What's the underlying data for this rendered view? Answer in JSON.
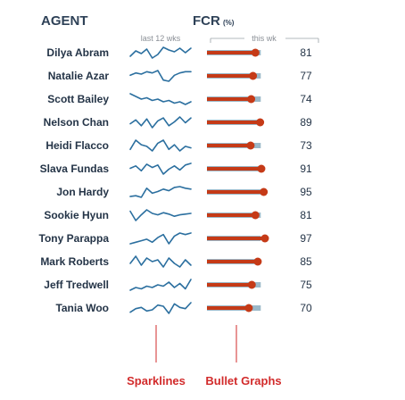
{
  "header": {
    "agent_label": "AGENT",
    "fcr_label": "FCR",
    "fcr_unit": "(%)",
    "sparkline_caption": "last 12 wks",
    "bullet_caption": "this wk"
  },
  "annotations": {
    "sparklines": "Sparklines",
    "bullets": "Bullet Graphs"
  },
  "colors": {
    "header_text": "#2e4157",
    "agent_text": "#243447",
    "sparkline": "#2b6f9f",
    "bullet_bar": "#c53a17",
    "bullet_target": "#9bb8c8",
    "annotation": "#d22b2b"
  },
  "chart_data": {
    "type": "table",
    "columns": [
      "AGENT",
      "last 12 wks",
      "this wk",
      "FCR (%)"
    ],
    "bullet_scale": [
      0,
      100
    ],
    "rows": [
      {
        "agent": "Dilya Abram",
        "fcr": 81,
        "target": 90,
        "trend": [
          72,
          78,
          75,
          80,
          70,
          74,
          82,
          79,
          77,
          81,
          76,
          81
        ]
      },
      {
        "agent": "Natalie Azar",
        "fcr": 77,
        "target": 90,
        "trend": [
          74,
          76,
          75,
          77,
          76,
          78,
          70,
          69,
          74,
          76,
          77,
          77
        ]
      },
      {
        "agent": "Scott Bailey",
        "fcr": 74,
        "target": 90,
        "trend": [
          80,
          78,
          76,
          77,
          75,
          76,
          74,
          75,
          73,
          74,
          72,
          74
        ]
      },
      {
        "agent": "Nelson Chan",
        "fcr": 89,
        "target": 90,
        "trend": [
          82,
          86,
          80,
          87,
          78,
          85,
          88,
          80,
          84,
          89,
          83,
          88
        ]
      },
      {
        "agent": "Heidi Flacco",
        "fcr": 73,
        "target": 90,
        "trend": [
          72,
          78,
          75,
          74,
          71,
          76,
          78,
          72,
          75,
          71,
          74,
          73
        ]
      },
      {
        "agent": "Slava Fundas",
        "fcr": 91,
        "target": 90,
        "trend": [
          85,
          88,
          82,
          90,
          86,
          89,
          78,
          84,
          88,
          83,
          89,
          91
        ]
      },
      {
        "agent": "Jon Hardy",
        "fcr": 95,
        "target": 90,
        "trend": [
          80,
          81,
          79,
          90,
          84,
          86,
          89,
          87,
          91,
          92,
          90,
          89
        ]
      },
      {
        "agent": "Sookie Hyun",
        "fcr": 81,
        "target": 90,
        "trend": [
          83,
          70,
          78,
          85,
          80,
          78,
          81,
          79,
          76,
          78,
          79,
          80
        ]
      },
      {
        "agent": "Tony Parappa",
        "fcr": 97,
        "target": 90,
        "trend": [
          90,
          91,
          92,
          93,
          91,
          94,
          96,
          90,
          95,
          97,
          96,
          97
        ]
      },
      {
        "agent": "Mark Roberts",
        "fcr": 85,
        "target": 90,
        "trend": [
          84,
          88,
          83,
          87,
          85,
          86,
          82,
          87,
          84,
          82,
          86,
          83
        ]
      },
      {
        "agent": "Jeff Tredwell",
        "fcr": 75,
        "target": 90,
        "trend": [
          70,
          72,
          71,
          73,
          72,
          74,
          73,
          76,
          72,
          75,
          71,
          78
        ]
      },
      {
        "agent": "Tania Woo",
        "fcr": 70,
        "target": 90,
        "trend": [
          65,
          68,
          69,
          66,
          67,
          71,
          70,
          64,
          72,
          69,
          68,
          73
        ]
      }
    ]
  }
}
